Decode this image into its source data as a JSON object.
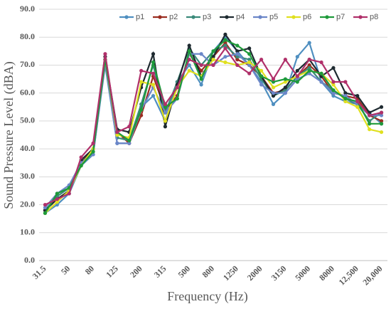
{
  "chart_data": {
    "type": "line",
    "xlabel": "Frequency (Hz)",
    "ylabel": "Sound Pressure Level (dBA)",
    "categories": [
      "31.5",
      null,
      "50",
      null,
      "80",
      null,
      "125",
      null,
      "200",
      null,
      "315",
      null,
      "500",
      null,
      "800",
      null,
      "1250",
      null,
      "2000",
      null,
      "3150",
      null,
      "5000",
      null,
      "8000",
      null,
      "12,500",
      null,
      "20,000"
    ],
    "ylim": [
      0,
      90
    ],
    "yticks": [
      {
        "value": 0,
        "label": "0.0"
      },
      {
        "value": 10,
        "label": "10.0"
      },
      {
        "value": 20,
        "label": "20.0"
      },
      {
        "value": 30,
        "label": "30.0"
      },
      {
        "value": 40,
        "label": "40.0"
      },
      {
        "value": 50,
        "label": "50.0"
      },
      {
        "value": 60,
        "label": "60.0"
      },
      {
        "value": 70,
        "label": "70.0"
      },
      {
        "value": 80,
        "label": "80.0"
      },
      {
        "value": 90,
        "label": "90.0"
      }
    ],
    "grid": true,
    "legend": "top-right",
    "series": [
      {
        "name": "p1",
        "color": "#4f8fc0",
        "values": [
          17,
          20,
          24,
          34,
          38,
          70,
          42,
          42,
          55,
          59,
          50,
          64,
          70,
          63,
          75,
          80,
          75,
          70,
          64,
          56,
          60,
          73,
          78,
          64,
          59,
          57,
          56,
          53,
          49
        ]
      },
      {
        "name": "p2",
        "color": "#9b2d20",
        "values": [
          18,
          22,
          25,
          35,
          40,
          72,
          46,
          42,
          52,
          66,
          54,
          59,
          74,
          68,
          73,
          78,
          72,
          70,
          66,
          60,
          61,
          66,
          70,
          66,
          60,
          59,
          58,
          52,
          50
        ]
      },
      {
        "name": "p3",
        "color": "#3a8a7a",
        "values": [
          18,
          23,
          26,
          35,
          39,
          71,
          44,
          43,
          56,
          70,
          53,
          64,
          76,
          70,
          75,
          77,
          73,
          72,
          65,
          59,
          61,
          66,
          69,
          64,
          61,
          58,
          56,
          50,
          53
        ]
      },
      {
        "name": "p4",
        "color": "#1e2a30",
        "values": [
          18,
          22,
          25,
          36,
          40,
          73,
          47,
          46,
          62,
          74,
          48,
          63,
          77,
          66,
          73,
          81,
          75,
          76,
          66,
          59,
          62,
          68,
          72,
          66,
          69,
          60,
          59,
          53,
          55
        ]
      },
      {
        "name": "p5",
        "color": "#6b86c8",
        "values": [
          19,
          24,
          27,
          35,
          38,
          71,
          42,
          42,
          54,
          62,
          53,
          58,
          74,
          74,
          70,
          73,
          74,
          70,
          63,
          60,
          60,
          65,
          67,
          64,
          60,
          59,
          56,
          52,
          52
        ]
      },
      {
        "name": "p6",
        "color": "#e0e020",
        "values": [
          17,
          21,
          25,
          34,
          40,
          72,
          45,
          44,
          64,
          63,
          50,
          62,
          68,
          66,
          72,
          71,
          70,
          71,
          68,
          62,
          64,
          66,
          68,
          67,
          63,
          57,
          55,
          47,
          46
        ]
      },
      {
        "name": "p7",
        "color": "#1e9a3a",
        "values": [
          17,
          24,
          26,
          34,
          39,
          72,
          46,
          43,
          54,
          71,
          55,
          58,
          75,
          65,
          75,
          79,
          77,
          74,
          66,
          64,
          65,
          64,
          68,
          67,
          61,
          58,
          57,
          49,
          49
        ]
      },
      {
        "name": "p8",
        "color": "#b0306a",
        "values": [
          20,
          22,
          24,
          37,
          42,
          74,
          46,
          48,
          68,
          67,
          56,
          62,
          72,
          70,
          70,
          76,
          70,
          67,
          72,
          65,
          72,
          66,
          72,
          71,
          64,
          64,
          57,
          52,
          53
        ]
      }
    ]
  }
}
